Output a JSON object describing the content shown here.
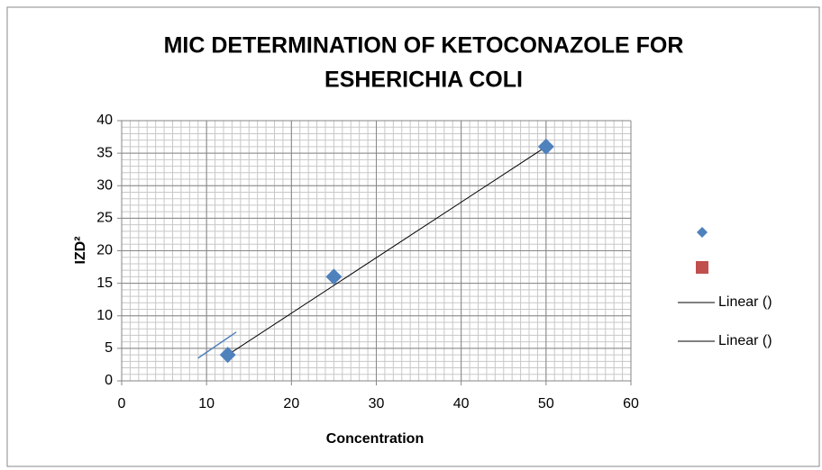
{
  "chart_data": {
    "type": "scatter",
    "title": [
      "MIC DETERMINATION OF KETOCONAZOLE FOR",
      "ESHERICHIA COLI"
    ],
    "x_label": "Concentration",
    "y_label": "IZD²",
    "series": [
      {
        "color": "#4f81bd",
        "marker": "diamond",
        "x": [
          12.5,
          25,
          50
        ],
        "values": [
          4,
          16,
          36
        ]
      },
      {
        "color": "#c0504d",
        "marker": "square",
        "x": [],
        "values": []
      }
    ],
    "trendlines": [
      {
        "name": "Linear ()",
        "color": "#000000",
        "x": [
          12.5,
          50
        ],
        "values": [
          4,
          36
        ]
      },
      {
        "name": "Linear ()",
        "color": "#4f81bd",
        "x": [
          9,
          13.5
        ],
        "values": [
          3.5,
          7.5
        ]
      }
    ],
    "xlim": [
      0,
      60
    ],
    "xticks": [
      0,
      10,
      20,
      30,
      40,
      50,
      60
    ],
    "ylim": [
      0,
      40
    ],
    "yticks": [
      0,
      5,
      10,
      15,
      20,
      25,
      30,
      35,
      40
    ],
    "grid": true,
    "minor_grid": {
      "x": 1,
      "y": 1
    },
    "legend": "right"
  }
}
